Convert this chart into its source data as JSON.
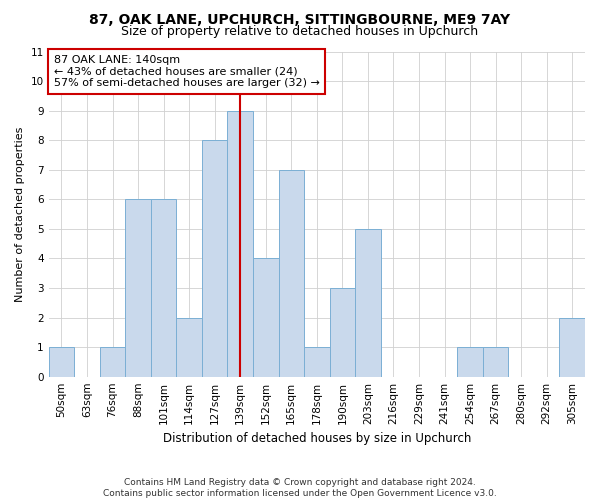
{
  "title_line1": "87, OAK LANE, UPCHURCH, SITTINGBOURNE, ME9 7AY",
  "title_line2": "Size of property relative to detached houses in Upchurch",
  "xlabel": "Distribution of detached houses by size in Upchurch",
  "ylabel": "Number of detached properties",
  "footnote": "Contains HM Land Registry data © Crown copyright and database right 2024.\nContains public sector information licensed under the Open Government Licence v3.0.",
  "categories": [
    "50sqm",
    "63sqm",
    "76sqm",
    "88sqm",
    "101sqm",
    "114sqm",
    "127sqm",
    "139sqm",
    "152sqm",
    "165sqm",
    "178sqm",
    "190sqm",
    "203sqm",
    "216sqm",
    "229sqm",
    "241sqm",
    "254sqm",
    "267sqm",
    "280sqm",
    "292sqm",
    "305sqm"
  ],
  "values": [
    1,
    0,
    1,
    6,
    6,
    2,
    8,
    9,
    4,
    7,
    1,
    3,
    5,
    0,
    0,
    0,
    1,
    1,
    0,
    0,
    2
  ],
  "bar_color": "#c9d9ec",
  "bar_edge_color": "#7bafd4",
  "property_line_x": 7,
  "property_line_color": "#cc0000",
  "annotation_line1": "87 OAK LANE: 140sqm",
  "annotation_line2": "← 43% of detached houses are smaller (24)",
  "annotation_line3": "57% of semi-detached houses are larger (32) →",
  "annotation_box_color": "#ffffff",
  "annotation_box_edge": "#cc0000",
  "ylim": [
    0,
    11
  ],
  "yticks": [
    0,
    1,
    2,
    3,
    4,
    5,
    6,
    7,
    8,
    9,
    10,
    11
  ],
  "grid_color": "#d0d0d0",
  "bg_color": "#ffffff",
  "title_fontsize": 10,
  "subtitle_fontsize": 9,
  "annotation_fontsize": 8,
  "xlabel_fontsize": 8.5,
  "ylabel_fontsize": 8,
  "tick_fontsize": 7.5
}
